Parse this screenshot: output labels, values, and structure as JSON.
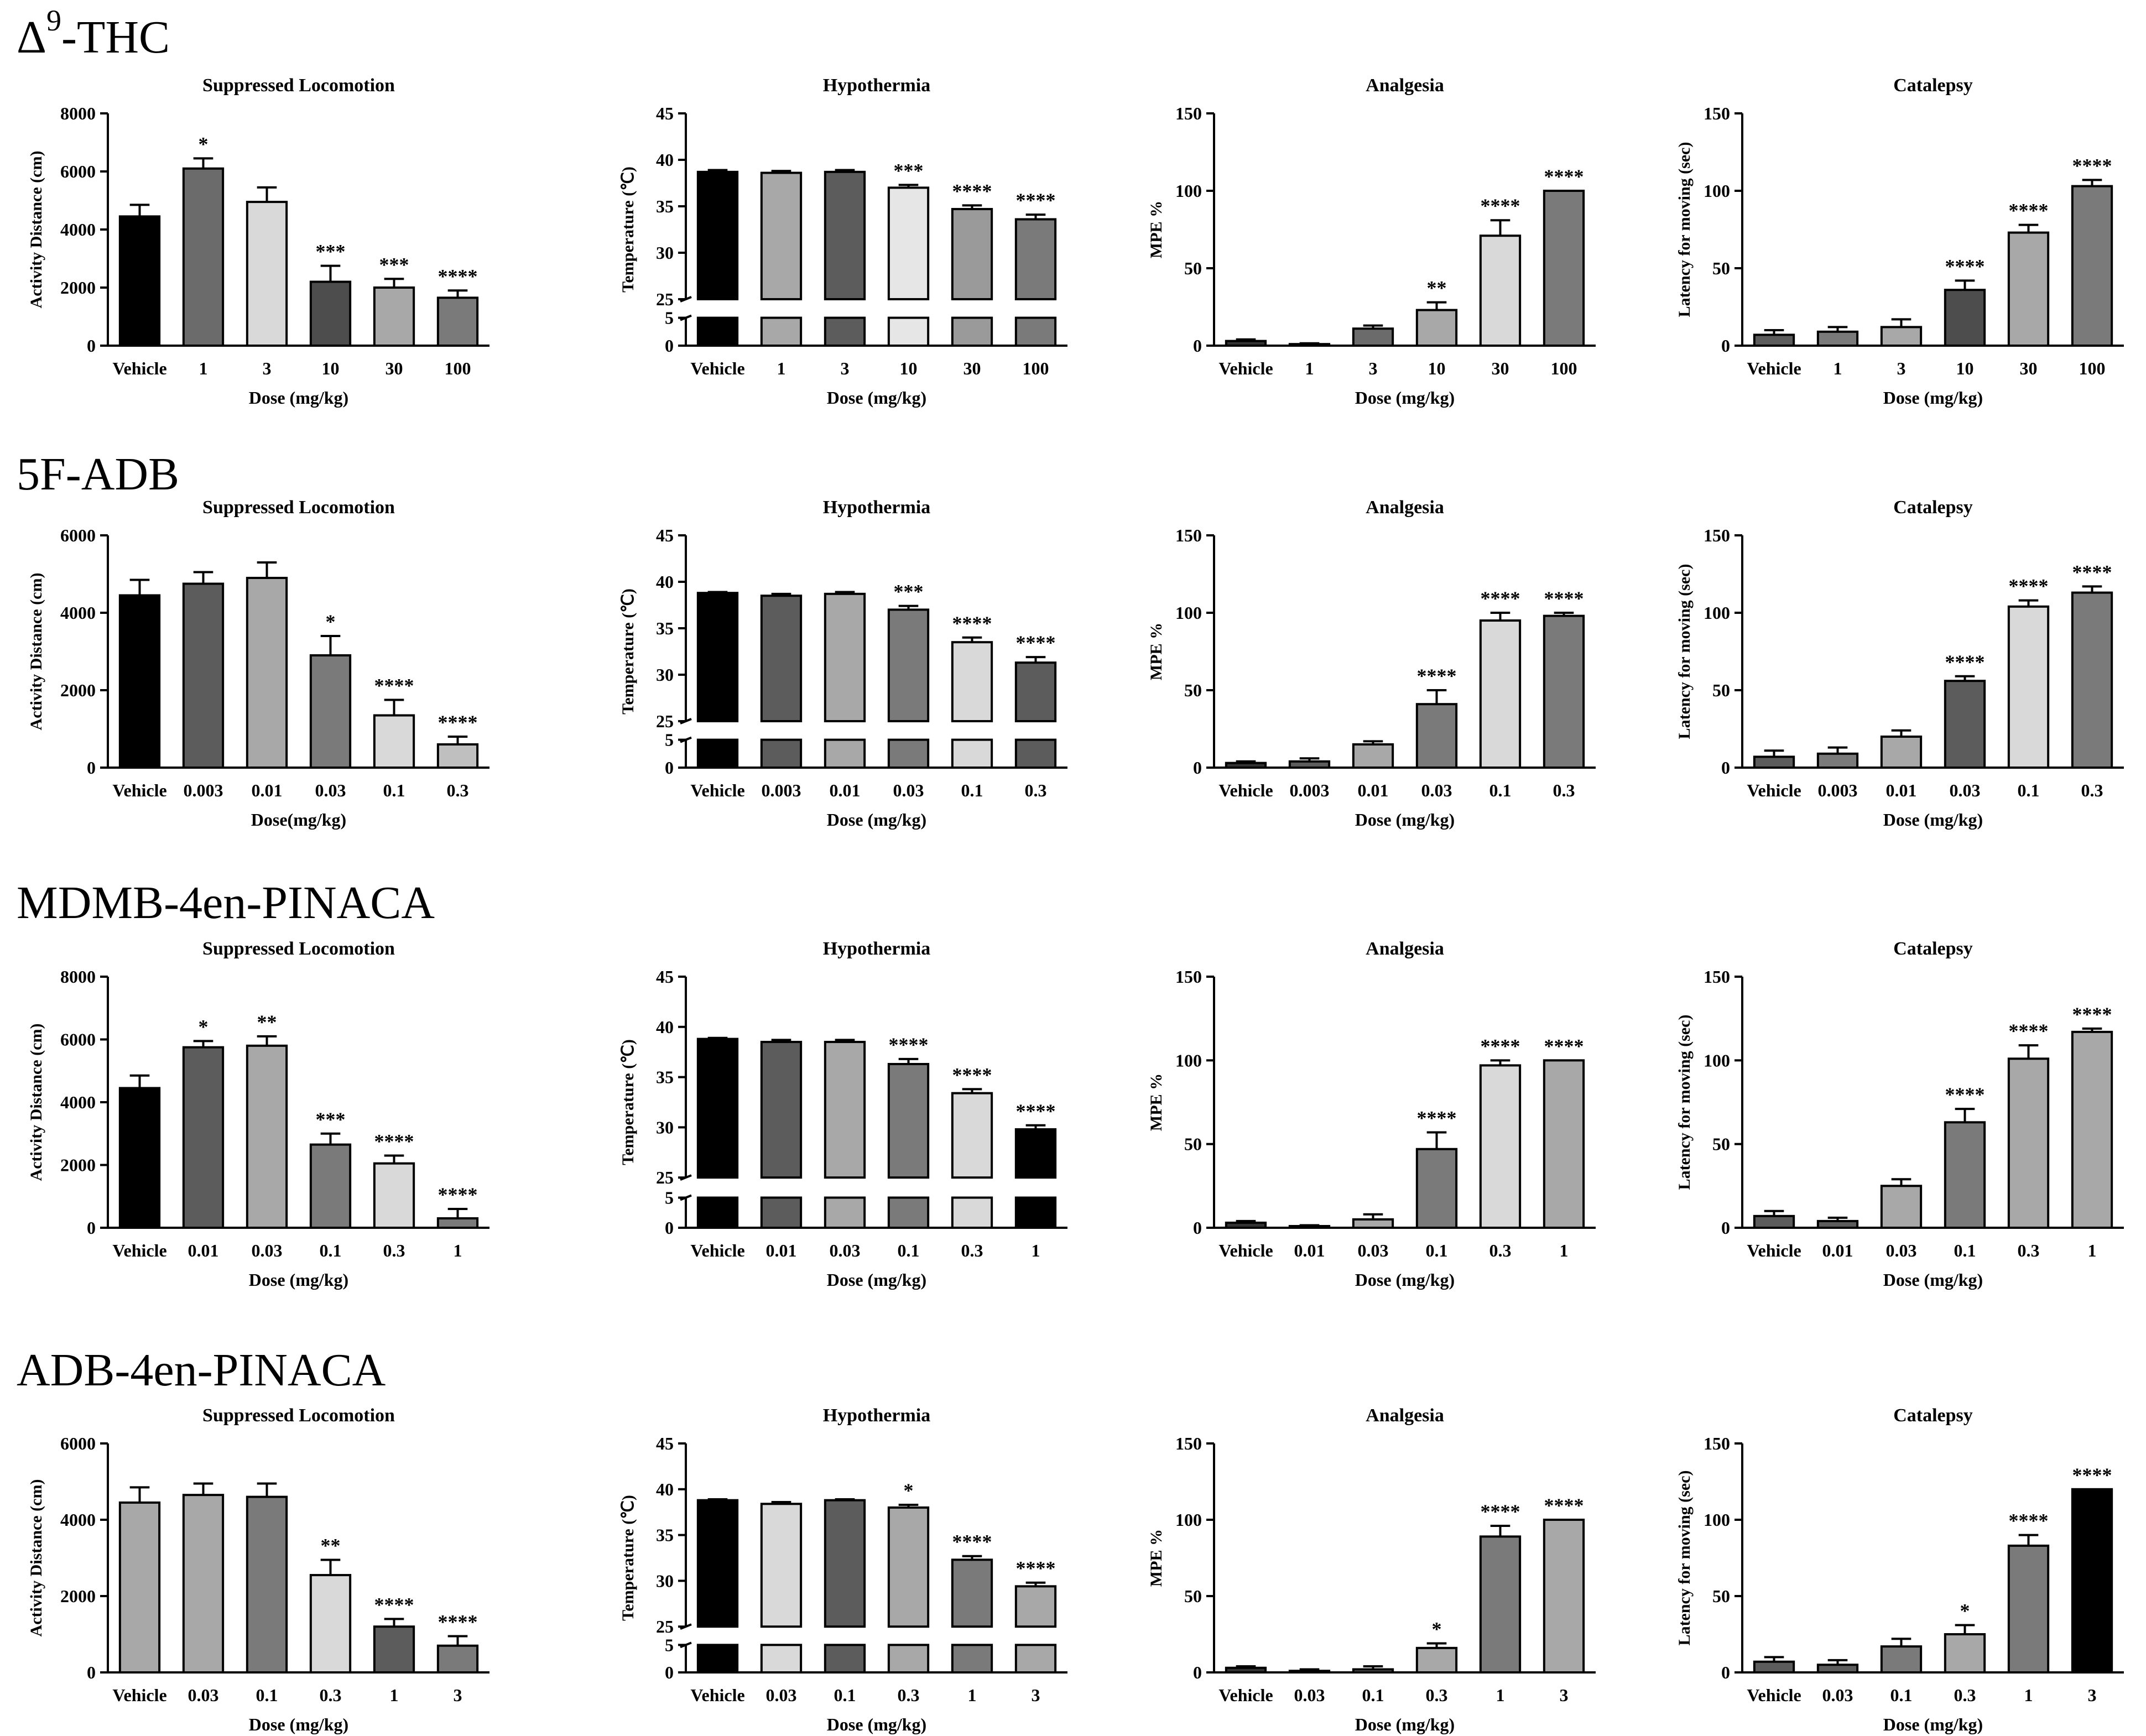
{
  "figure": {
    "rows": [
      {
        "drug": "Δ",
        "drug_sup": "9",
        "drug_suffix": "-THC",
        "charts": [
          {
            "type": "bar",
            "title": "Suppressed Locomotion",
            "ylabel": "Activity Distance (cm)",
            "xlabel": "Dose (mg/kg)",
            "categories": [
              "Vehicle",
              "1",
              "3",
              "10",
              "30",
              "100"
            ],
            "ylim": [
              0,
              8000
            ],
            "yticks": [
              "0",
              "2000",
              "4000",
              "6000",
              "8000"
            ],
            "values": [
              4450,
              6100,
              4950,
              2200,
              2000,
              1650
            ],
            "errors": [
              400,
              350,
              500,
              550,
              300,
              250
            ],
            "significance": [
              "",
              "*",
              "",
              "***",
              "***",
              "****"
            ],
            "colors": [
              "#000000",
              "#6b6b6b",
              "#d9d9d9",
              "#4d4d4d",
              "#a8a8a8",
              "#7a7a7a"
            ]
          },
          {
            "type": "bar",
            "title": "Hypothermia",
            "ylabel": "Temperature (℃)",
            "xlabel": "Dose (mg/kg)",
            "broken_axis": true,
            "categories": [
              "Vehicle",
              "1",
              "3",
              "10",
              "30",
              "100"
            ],
            "ylim": [
              0,
              45
            ],
            "yticks": [
              "0",
              "5",
              "25",
              "30",
              "35",
              "40",
              "45"
            ],
            "values": [
              38.7,
              38.6,
              38.7,
              37.0,
              34.7,
              33.6
            ],
            "errors": [
              0.2,
              0.2,
              0.2,
              0.3,
              0.4,
              0.5
            ],
            "significance": [
              "",
              "",
              "",
              "***",
              "****",
              "****"
            ],
            "colors": [
              "#000000",
              "#a8a8a8",
              "#5c5c5c",
              "#e6e6e6",
              "#9a9a9a",
              "#7a7a7a"
            ]
          },
          {
            "type": "bar",
            "title": "Analgesia",
            "ylabel": "MPE %",
            "xlabel": "Dose (mg/kg)",
            "categories": [
              "Vehicle",
              "1",
              "3",
              "10",
              "30",
              "100"
            ],
            "ylim": [
              0,
              150
            ],
            "yticks": [
              "0",
              "50",
              "100",
              "150"
            ],
            "values": [
              3,
              1,
              11,
              23,
              71,
              100
            ],
            "errors": [
              1,
              0.5,
              2,
              5,
              10,
              0
            ],
            "significance": [
              "",
              "",
              "",
              "**",
              "****",
              "****"
            ],
            "colors": [
              "#333333",
              "#333333",
              "#6b6b6b",
              "#a8a8a8",
              "#d9d9d9",
              "#7a7a7a"
            ]
          },
          {
            "type": "bar",
            "title": "Catalepsy",
            "ylabel": "Latency for moving (sec)",
            "xlabel": "Dose (mg/kg)",
            "categories": [
              "Vehicle",
              "1",
              "3",
              "10",
              "30",
              "100"
            ],
            "ylim": [
              0,
              150
            ],
            "yticks": [
              "0",
              "50",
              "100",
              "150"
            ],
            "values": [
              7,
              9,
              12,
              36,
              73,
              103
            ],
            "errors": [
              3,
              3,
              5,
              6,
              5,
              4
            ],
            "significance": [
              "",
              "",
              "",
              "****",
              "****",
              "****"
            ],
            "colors": [
              "#5c5c5c",
              "#7a7a7a",
              "#a8a8a8",
              "#4d4d4d",
              "#a8a8a8",
              "#7a7a7a"
            ]
          }
        ]
      },
      {
        "drug": "5F-ADB",
        "drug_sup": "",
        "drug_suffix": "",
        "charts": [
          {
            "type": "bar",
            "title": "Suppressed Locomotion",
            "ylabel": "Activity Distance (cm)",
            "xlabel": "Dose(mg/kg)",
            "categories": [
              "Vehicle",
              "0.003",
              "0.01",
              "0.03",
              "0.1",
              "0.3"
            ],
            "ylim": [
              0,
              6000
            ],
            "yticks": [
              "0",
              "2000",
              "4000",
              "6000"
            ],
            "values": [
              4450,
              4750,
              4900,
              2900,
              1350,
              600
            ],
            "errors": [
              400,
              300,
              400,
              500,
              400,
              200
            ],
            "significance": [
              "",
              "",
              "",
              "*",
              "****",
              "****"
            ],
            "colors": [
              "#000000",
              "#5c5c5c",
              "#a8a8a8",
              "#7a7a7a",
              "#d9d9d9",
              "#bfbfbf"
            ]
          },
          {
            "type": "bar",
            "title": "Hypothermia",
            "ylabel": "Temperature (℃)",
            "xlabel": "Dose (mg/kg)",
            "broken_axis": true,
            "categories": [
              "Vehicle",
              "0.003",
              "0.01",
              "0.03",
              "0.1",
              "0.3"
            ],
            "ylim": [
              0,
              45
            ],
            "yticks": [
              "0",
              "5",
              "25",
              "30",
              "35",
              "40",
              "45"
            ],
            "values": [
              38.8,
              38.5,
              38.7,
              37.0,
              33.5,
              31.3
            ],
            "errors": [
              0.1,
              0.2,
              0.2,
              0.4,
              0.5,
              0.6
            ],
            "significance": [
              "",
              "",
              "",
              "***",
              "****",
              "****"
            ],
            "colors": [
              "#000000",
              "#5c5c5c",
              "#a8a8a8",
              "#7a7a7a",
              "#d9d9d9",
              "#5c5c5c"
            ]
          },
          {
            "type": "bar",
            "title": "Analgesia",
            "ylabel": "MPE %",
            "xlabel": "Dose (mg/kg)",
            "categories": [
              "Vehicle",
              "0.003",
              "0.01",
              "0.03",
              "0.1",
              "0.3"
            ],
            "ylim": [
              0,
              150
            ],
            "yticks": [
              "0",
              "50",
              "100",
              "150"
            ],
            "values": [
              3,
              4,
              15,
              41,
              95,
              98
            ],
            "errors": [
              1,
              2,
              2,
              9,
              5,
              2
            ],
            "significance": [
              "",
              "",
              "",
              "****",
              "****",
              "****"
            ],
            "colors": [
              "#333333",
              "#5c5c5c",
              "#a8a8a8",
              "#7a7a7a",
              "#d9d9d9",
              "#7a7a7a"
            ]
          },
          {
            "type": "bar",
            "title": "Catalepsy",
            "ylabel": "Latency for moving (sec)",
            "xlabel": "Dose (mg/kg)",
            "categories": [
              "Vehicle",
              "0.003",
              "0.01",
              "0.03",
              "0.1",
              "0.3"
            ],
            "ylim": [
              0,
              150
            ],
            "yticks": [
              "0",
              "50",
              "100",
              "150"
            ],
            "values": [
              7,
              9,
              20,
              56,
              104,
              113
            ],
            "errors": [
              4,
              4,
              4,
              3,
              4,
              4
            ],
            "significance": [
              "",
              "",
              "",
              "****",
              "****",
              "****"
            ],
            "colors": [
              "#5c5c5c",
              "#7a7a7a",
              "#a8a8a8",
              "#5c5c5c",
              "#d9d9d9",
              "#7a7a7a"
            ]
          }
        ]
      },
      {
        "drug": "MDMB-4en-PINACA",
        "drug_sup": "",
        "drug_suffix": "",
        "charts": [
          {
            "type": "bar",
            "title": "Suppressed Locomotion",
            "ylabel": "Activity Distance (cm)",
            "xlabel": "Dose (mg/kg)",
            "categories": [
              "Vehicle",
              "0.01",
              "0.03",
              "0.1",
              "0.3",
              "1"
            ],
            "ylim": [
              0,
              8000
            ],
            "yticks": [
              "0",
              "2000",
              "4000",
              "6000",
              "8000"
            ],
            "values": [
              4450,
              5750,
              5800,
              2650,
              2050,
              300
            ],
            "errors": [
              400,
              200,
              300,
              350,
              250,
              300
            ],
            "significance": [
              "",
              "*",
              "**",
              "***",
              "****",
              "****"
            ],
            "colors": [
              "#000000",
              "#5c5c5c",
              "#a8a8a8",
              "#7a7a7a",
              "#d9d9d9",
              "#7a7a7a"
            ]
          },
          {
            "type": "bar",
            "title": "Hypothermia",
            "ylabel": "Temperature (℃)",
            "xlabel": "Dose (mg/kg)",
            "broken_axis": true,
            "categories": [
              "Vehicle",
              "0.01",
              "0.03",
              "0.1",
              "0.3",
              "1"
            ],
            "ylim": [
              0,
              45
            ],
            "yticks": [
              "0",
              "5",
              "25",
              "30",
              "35",
              "40",
              "45"
            ],
            "values": [
              38.8,
              38.5,
              38.5,
              36.3,
              33.4,
              29.8
            ],
            "errors": [
              0.1,
              0.2,
              0.2,
              0.5,
              0.4,
              0.4
            ],
            "significance": [
              "",
              "",
              "",
              "****",
              "****",
              "****"
            ],
            "colors": [
              "#000000",
              "#5c5c5c",
              "#a8a8a8",
              "#7a7a7a",
              "#d9d9d9",
              "#000000"
            ]
          },
          {
            "type": "bar",
            "title": "Analgesia",
            "ylabel": "MPE %",
            "xlabel": "Dose (mg/kg)",
            "categories": [
              "Vehicle",
              "0.01",
              "0.03",
              "0.1",
              "0.3",
              "1"
            ],
            "ylim": [
              0,
              150
            ],
            "yticks": [
              "0",
              "50",
              "100",
              "150"
            ],
            "values": [
              3,
              1,
              5,
              47,
              97,
              100
            ],
            "errors": [
              1,
              0.5,
              3,
              10,
              3,
              0
            ],
            "significance": [
              "",
              "",
              "",
              "****",
              "****",
              "****"
            ],
            "colors": [
              "#333333",
              "#333333",
              "#a8a8a8",
              "#7a7a7a",
              "#d9d9d9",
              "#a8a8a8"
            ]
          },
          {
            "type": "bar",
            "title": "Catalepsy",
            "ylabel": "Latency for moving (sec)",
            "xlabel": "Dose (mg/kg)",
            "categories": [
              "Vehicle",
              "0.01",
              "0.03",
              "0.1",
              "0.3",
              "1"
            ],
            "ylim": [
              0,
              150
            ],
            "yticks": [
              "0",
              "50",
              "100",
              "150"
            ],
            "values": [
              7,
              4,
              25,
              63,
              101,
              117
            ],
            "errors": [
              3,
              2,
              4,
              8,
              8,
              2
            ],
            "significance": [
              "",
              "",
              "",
              "****",
              "****",
              "****"
            ],
            "colors": [
              "#5c5c5c",
              "#5c5c5c",
              "#a8a8a8",
              "#7a7a7a",
              "#a8a8a8",
              "#a8a8a8"
            ]
          }
        ]
      },
      {
        "drug": "ADB-4en-PINACA",
        "drug_sup": "",
        "drug_suffix": "",
        "charts": [
          {
            "type": "bar",
            "title": "Suppressed Locomotion",
            "ylabel": "Activity Distance (cm)",
            "xlabel": "Dose (mg/kg)",
            "categories": [
              "Vehicle",
              "0.03",
              "0.1",
              "0.3",
              "1",
              "3"
            ],
            "ylim": [
              0,
              6000
            ],
            "yticks": [
              "0",
              "2000",
              "4000",
              "6000"
            ],
            "values": [
              4450,
              4650,
              4600,
              2550,
              1200,
              700
            ],
            "errors": [
              400,
              300,
              350,
              400,
              200,
              250
            ],
            "significance": [
              "",
              "",
              "",
              "**",
              "****",
              "****"
            ],
            "colors": [
              "#a8a8a8",
              "#a8a8a8",
              "#7a7a7a",
              "#d9d9d9",
              "#5c5c5c",
              "#7a7a7a"
            ]
          },
          {
            "type": "bar",
            "title": "Hypothermia",
            "ylabel": "Temperature (℃)",
            "xlabel": "Dose (mg/kg)",
            "broken_axis": true,
            "categories": [
              "Vehicle",
              "0.03",
              "0.1",
              "0.3",
              "1",
              "3"
            ],
            "ylim": [
              0,
              45
            ],
            "yticks": [
              "0",
              "5",
              "25",
              "30",
              "35",
              "40",
              "45"
            ],
            "values": [
              38.8,
              38.4,
              38.8,
              38.0,
              32.3,
              29.4
            ],
            "errors": [
              0.1,
              0.2,
              0.1,
              0.3,
              0.4,
              0.4
            ],
            "significance": [
              "",
              "",
              "",
              "*",
              "****",
              "****"
            ],
            "colors": [
              "#000000",
              "#d9d9d9",
              "#5c5c5c",
              "#a8a8a8",
              "#7a7a7a",
              "#a8a8a8"
            ]
          },
          {
            "type": "bar",
            "title": "Analgesia",
            "ylabel": "MPE %",
            "xlabel": "Dose (mg/kg)",
            "categories": [
              "Vehicle",
              "0.03",
              "0.1",
              "0.3",
              "1",
              "3"
            ],
            "ylim": [
              0,
              150
            ],
            "yticks": [
              "0",
              "50",
              "100",
              "150"
            ],
            "values": [
              3,
              1,
              2,
              16,
              89,
              100
            ],
            "errors": [
              1,
              1,
              2,
              3,
              7,
              0
            ],
            "significance": [
              "",
              "",
              "",
              "*",
              "****",
              "****"
            ],
            "colors": [
              "#333333",
              "#333333",
              "#5c5c5c",
              "#a8a8a8",
              "#7a7a7a",
              "#a8a8a8"
            ]
          },
          {
            "type": "bar",
            "title": "Catalepsy",
            "ylabel": "Latency for moving (sec)",
            "xlabel": "Dose (mg/kg)",
            "categories": [
              "Vehicle",
              "0.03",
              "0.1",
              "0.3",
              "1",
              "3"
            ],
            "ylim": [
              0,
              150
            ],
            "yticks": [
              "0",
              "50",
              "100",
              "150"
            ],
            "values": [
              7,
              5,
              17,
              25,
              83,
              120
            ],
            "errors": [
              3,
              3,
              5,
              6,
              7,
              0
            ],
            "significance": [
              "",
              "",
              "",
              "*",
              "****",
              "****"
            ],
            "colors": [
              "#5c5c5c",
              "#5c5c5c",
              "#7a7a7a",
              "#a8a8a8",
              "#7a7a7a",
              "#000000"
            ]
          }
        ]
      }
    ]
  }
}
